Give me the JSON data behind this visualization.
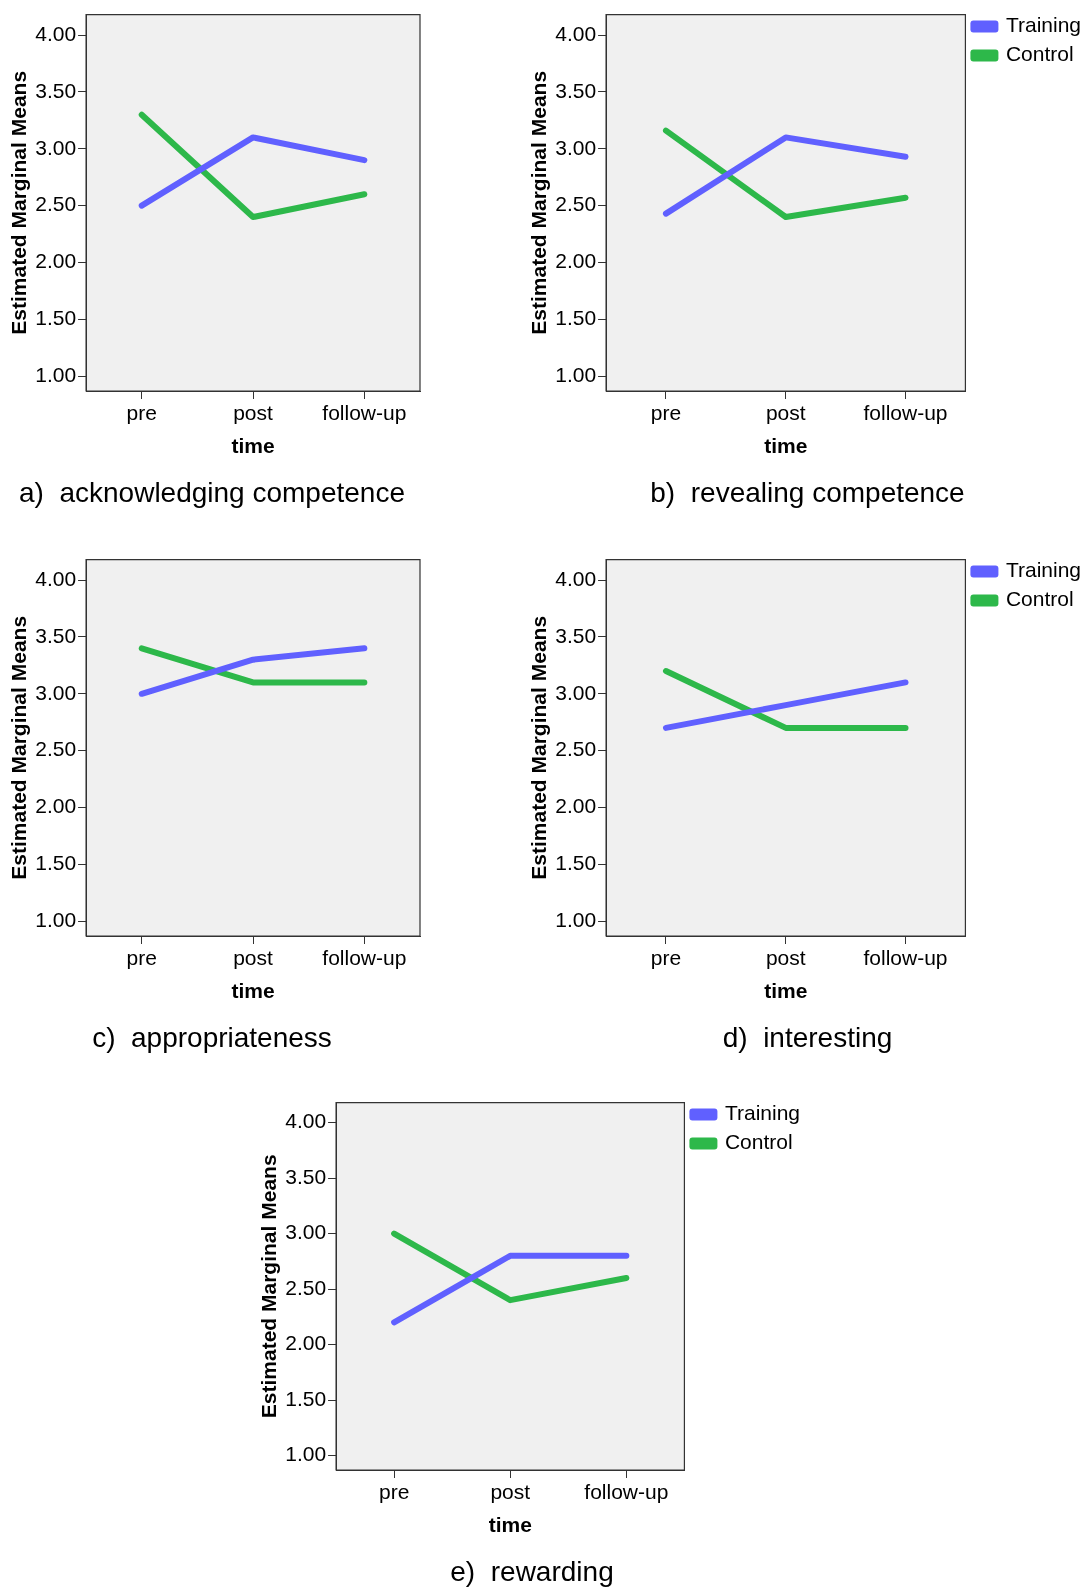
{
  "chart_data": [
    {
      "type": "line",
      "title": "a)  acknowledging competence",
      "xlabel": "time",
      "ylabel": "Estimated Marginal Means",
      "categories": [
        "pre",
        "post",
        "follow-up"
      ],
      "series": [
        {
          "color": "#6060ff",
          "values": [
            2.5,
            3.1,
            2.9
          ]
        },
        {
          "color": "#2db84a",
          "values": [
            3.3,
            2.4,
            2.6
          ]
        }
      ],
      "ylim": [
        0.87,
        4.18
      ],
      "yticks": [
        {
          "value": 1,
          "label": "1.00"
        },
        {
          "value": 1.5,
          "label": "1.50"
        },
        {
          "value": 2,
          "label": "2.00"
        },
        {
          "value": 2.5,
          "label": "2.50"
        },
        {
          "value": 3,
          "label": "3.00"
        },
        {
          "value": 3.5,
          "label": "3.50"
        },
        {
          "value": 4,
          "label": "4.00"
        }
      ],
      "grid": false,
      "legend": false,
      "marker": "none"
    },
    {
      "type": "line",
      "title": "b)  revealing competence",
      "xlabel": "time",
      "ylabel": "Estimated Marginal Means",
      "categories": [
        "pre",
        "post",
        "follow-up"
      ],
      "series": [
        {
          "name": "Training",
          "color": "#6060ff",
          "values": [
            2.43,
            3.1,
            2.93
          ]
        },
        {
          "name": "Control",
          "color": "#2db84a",
          "values": [
            3.16,
            2.4,
            2.57
          ]
        }
      ],
      "ylim": [
        0.87,
        4.18
      ],
      "yticks": [
        {
          "value": 1,
          "label": "1.00"
        },
        {
          "value": 1.5,
          "label": "1.50"
        },
        {
          "value": 2,
          "label": "2.00"
        },
        {
          "value": 2.5,
          "label": "2.50"
        },
        {
          "value": 3,
          "label": "3.00"
        },
        {
          "value": 3.5,
          "label": "3.50"
        },
        {
          "value": 4,
          "label": "4.00"
        }
      ],
      "grid": false,
      "legend": "top right",
      "marker": "none"
    },
    {
      "type": "line",
      "title": "c)  appropriateness",
      "xlabel": "time",
      "ylabel": "Estimated Marginal Means",
      "categories": [
        "pre",
        "post",
        "follow-up"
      ],
      "series": [
        {
          "color": "#6060ff",
          "values": [
            3.0,
            3.3,
            3.4
          ]
        },
        {
          "color": "#2db84a",
          "values": [
            3.4,
            3.1,
            3.1
          ]
        }
      ],
      "ylim": [
        0.87,
        4.18
      ],
      "yticks": [
        {
          "value": 1,
          "label": "1.00"
        },
        {
          "value": 1.5,
          "label": "1.50"
        },
        {
          "value": 2,
          "label": "2.00"
        },
        {
          "value": 2.5,
          "label": "2.50"
        },
        {
          "value": 3,
          "label": "3.00"
        },
        {
          "value": 3.5,
          "label": "3.50"
        },
        {
          "value": 4,
          "label": "4.00"
        }
      ],
      "grid": false,
      "legend": false,
      "marker": "none"
    },
    {
      "type": "line",
      "title": "d)  interesting",
      "xlabel": "time",
      "ylabel": "Estimated Marginal Means",
      "categories": [
        "pre",
        "post",
        "follow-up"
      ],
      "series": [
        {
          "name": "Training",
          "color": "#6060ff",
          "values": [
            2.7,
            2.9,
            3.1
          ]
        },
        {
          "name": "Control",
          "color": "#2db84a",
          "values": [
            3.2,
            2.7,
            2.7
          ]
        }
      ],
      "ylim": [
        0.87,
        4.18
      ],
      "yticks": [
        {
          "value": 1,
          "label": "1.00"
        },
        {
          "value": 1.5,
          "label": "1.50"
        },
        {
          "value": 2,
          "label": "2.00"
        },
        {
          "value": 2.5,
          "label": "2.50"
        },
        {
          "value": 3,
          "label": "3.00"
        },
        {
          "value": 3.5,
          "label": "3.50"
        },
        {
          "value": 4,
          "label": "4.00"
        }
      ],
      "grid": false,
      "legend": "top right",
      "marker": "none"
    },
    {
      "type": "line",
      "title": "e)  rewarding",
      "xlabel": "time",
      "ylabel": "Estimated Marginal Means",
      "categories": [
        "pre",
        "post",
        "follow-up"
      ],
      "series": [
        {
          "name": "Training",
          "color": "#6060ff",
          "values": [
            2.2,
            2.8,
            2.8
          ]
        },
        {
          "name": "Control",
          "color": "#2db84a",
          "values": [
            3.0,
            2.4,
            2.6
          ]
        }
      ],
      "ylim": [
        0.87,
        4.18
      ],
      "yticks": [
        {
          "value": 1,
          "label": "1.00"
        },
        {
          "value": 1.5,
          "label": "1.50"
        },
        {
          "value": 2,
          "label": "2.00"
        },
        {
          "value": 2.5,
          "label": "2.50"
        },
        {
          "value": 3,
          "label": "3.00"
        },
        {
          "value": 3.5,
          "label": "3.50"
        },
        {
          "value": 4,
          "label": "4.00"
        }
      ],
      "grid": false,
      "legend": "top right",
      "marker": "none"
    }
  ]
}
